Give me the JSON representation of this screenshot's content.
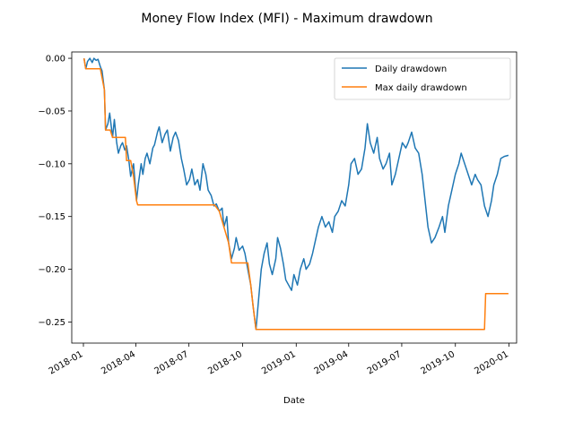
{
  "chart_data": {
    "type": "line",
    "title": "Money Flow Index (MFI) - Maximum drawdown",
    "xlabel": "Date",
    "ylabel": "",
    "xlim": [
      "2017-12-12",
      "2020-01-14"
    ],
    "ylim": [
      -0.27,
      0.006
    ],
    "grid": false,
    "legend_position": "top-right",
    "x_ticks": [
      "2018-01",
      "2018-04",
      "2018-07",
      "2018-10",
      "2019-01",
      "2019-04",
      "2019-07",
      "2019-10",
      "2020-01"
    ],
    "y_ticks": [
      0.0,
      -0.05,
      -0.1,
      -0.15,
      -0.2,
      -0.25
    ],
    "y_tick_labels": [
      "0.00",
      "−0.05",
      "−0.10",
      "−0.15",
      "−0.20",
      "−0.25"
    ],
    "series": [
      {
        "name": "Daily drawdown",
        "color": "#1f77b4",
        "points": [
          [
            "2018-01-02",
            0.0
          ],
          [
            "2018-01-05",
            -0.01
          ],
          [
            "2018-01-08",
            -0.003
          ],
          [
            "2018-01-12",
            0.0
          ],
          [
            "2018-01-16",
            -0.004
          ],
          [
            "2018-01-19",
            0.0
          ],
          [
            "2018-01-23",
            -0.002
          ],
          [
            "2018-01-26",
            -0.001
          ],
          [
            "2018-01-30",
            -0.008
          ],
          [
            "2018-02-02",
            -0.012
          ],
          [
            "2018-02-06",
            -0.03
          ],
          [
            "2018-02-08",
            -0.068
          ],
          [
            "2018-02-12",
            -0.062
          ],
          [
            "2018-02-15",
            -0.052
          ],
          [
            "2018-02-20",
            -0.075
          ],
          [
            "2018-02-23",
            -0.058
          ],
          [
            "2018-02-27",
            -0.08
          ],
          [
            "2018-03-02",
            -0.09
          ],
          [
            "2018-03-06",
            -0.083
          ],
          [
            "2018-03-09",
            -0.08
          ],
          [
            "2018-03-13",
            -0.087
          ],
          [
            "2018-03-16",
            -0.083
          ],
          [
            "2018-03-20",
            -0.097
          ],
          [
            "2018-03-23",
            -0.112
          ],
          [
            "2018-03-28",
            -0.1
          ],
          [
            "2018-04-02",
            -0.135
          ],
          [
            "2018-04-05",
            -0.12
          ],
          [
            "2018-04-10",
            -0.1
          ],
          [
            "2018-04-13",
            -0.11
          ],
          [
            "2018-04-17",
            -0.095
          ],
          [
            "2018-04-20",
            -0.09
          ],
          [
            "2018-04-25",
            -0.1
          ],
          [
            "2018-04-30",
            -0.085
          ],
          [
            "2018-05-03",
            -0.082
          ],
          [
            "2018-05-08",
            -0.07
          ],
          [
            "2018-05-11",
            -0.065
          ],
          [
            "2018-05-16",
            -0.08
          ],
          [
            "2018-05-21",
            -0.072
          ],
          [
            "2018-05-25",
            -0.068
          ],
          [
            "2018-05-30",
            -0.088
          ],
          [
            "2018-06-04",
            -0.075
          ],
          [
            "2018-06-08",
            -0.07
          ],
          [
            "2018-06-13",
            -0.078
          ],
          [
            "2018-06-18",
            -0.095
          ],
          [
            "2018-06-22",
            -0.105
          ],
          [
            "2018-06-27",
            -0.12
          ],
          [
            "2018-07-02",
            -0.115
          ],
          [
            "2018-07-06",
            -0.105
          ],
          [
            "2018-07-11",
            -0.12
          ],
          [
            "2018-07-16",
            -0.115
          ],
          [
            "2018-07-20",
            -0.125
          ],
          [
            "2018-07-25",
            -0.1
          ],
          [
            "2018-07-30",
            -0.11
          ],
          [
            "2018-08-03",
            -0.125
          ],
          [
            "2018-08-08",
            -0.13
          ],
          [
            "2018-08-13",
            -0.14
          ],
          [
            "2018-08-17",
            -0.138
          ],
          [
            "2018-08-22",
            -0.145
          ],
          [
            "2018-08-27",
            -0.142
          ],
          [
            "2018-08-30",
            -0.16
          ],
          [
            "2018-09-04",
            -0.15
          ],
          [
            "2018-09-07",
            -0.175
          ],
          [
            "2018-09-12",
            -0.19
          ],
          [
            "2018-09-17",
            -0.18
          ],
          [
            "2018-09-20",
            -0.17
          ],
          [
            "2018-09-25",
            -0.182
          ],
          [
            "2018-10-01",
            -0.178
          ],
          [
            "2018-10-05",
            -0.185
          ],
          [
            "2018-10-10",
            -0.2
          ],
          [
            "2018-10-15",
            -0.215
          ],
          [
            "2018-10-19",
            -0.235
          ],
          [
            "2018-10-24",
            -0.257
          ],
          [
            "2018-10-29",
            -0.225
          ],
          [
            "2018-11-02",
            -0.2
          ],
          [
            "2018-11-07",
            -0.185
          ],
          [
            "2018-11-12",
            -0.175
          ],
          [
            "2018-11-16",
            -0.195
          ],
          [
            "2018-11-21",
            -0.205
          ],
          [
            "2018-11-27",
            -0.19
          ],
          [
            "2018-11-30",
            -0.17
          ],
          [
            "2018-12-05",
            -0.18
          ],
          [
            "2018-12-10",
            -0.195
          ],
          [
            "2018-12-14",
            -0.21
          ],
          [
            "2018-12-19",
            -0.215
          ],
          [
            "2018-12-24",
            -0.22
          ],
          [
            "2018-12-28",
            -0.205
          ],
          [
            "2019-01-03",
            -0.215
          ],
          [
            "2019-01-08",
            -0.2
          ],
          [
            "2019-01-14",
            -0.19
          ],
          [
            "2019-01-18",
            -0.2
          ],
          [
            "2019-01-24",
            -0.195
          ],
          [
            "2019-01-29",
            -0.185
          ],
          [
            "2019-02-04",
            -0.17
          ],
          [
            "2019-02-08",
            -0.16
          ],
          [
            "2019-02-14",
            -0.15
          ],
          [
            "2019-02-20",
            -0.16
          ],
          [
            "2019-02-26",
            -0.155
          ],
          [
            "2019-03-04",
            -0.165
          ],
          [
            "2019-03-08",
            -0.15
          ],
          [
            "2019-03-14",
            -0.145
          ],
          [
            "2019-03-20",
            -0.135
          ],
          [
            "2019-03-26",
            -0.14
          ],
          [
            "2019-04-01",
            -0.12
          ],
          [
            "2019-04-05",
            -0.1
          ],
          [
            "2019-04-11",
            -0.095
          ],
          [
            "2019-04-17",
            -0.11
          ],
          [
            "2019-04-23",
            -0.105
          ],
          [
            "2019-04-29",
            -0.085
          ],
          [
            "2019-05-03",
            -0.062
          ],
          [
            "2019-05-08",
            -0.08
          ],
          [
            "2019-05-14",
            -0.09
          ],
          [
            "2019-05-20",
            -0.075
          ],
          [
            "2019-05-24",
            -0.095
          ],
          [
            "2019-05-30",
            -0.105
          ],
          [
            "2019-06-04",
            -0.1
          ],
          [
            "2019-06-10",
            -0.09
          ],
          [
            "2019-06-14",
            -0.12
          ],
          [
            "2019-06-20",
            -0.11
          ],
          [
            "2019-06-26",
            -0.095
          ],
          [
            "2019-07-02",
            -0.08
          ],
          [
            "2019-07-08",
            -0.085
          ],
          [
            "2019-07-12",
            -0.08
          ],
          [
            "2019-07-18",
            -0.07
          ],
          [
            "2019-07-24",
            -0.085
          ],
          [
            "2019-07-30",
            -0.09
          ],
          [
            "2019-08-05",
            -0.11
          ],
          [
            "2019-08-09",
            -0.13
          ],
          [
            "2019-08-15",
            -0.16
          ],
          [
            "2019-08-21",
            -0.175
          ],
          [
            "2019-08-27",
            -0.17
          ],
          [
            "2019-09-03",
            -0.16
          ],
          [
            "2019-09-09",
            -0.15
          ],
          [
            "2019-09-13",
            -0.165
          ],
          [
            "2019-09-19",
            -0.14
          ],
          [
            "2019-09-25",
            -0.125
          ],
          [
            "2019-10-01",
            -0.11
          ],
          [
            "2019-10-07",
            -0.1
          ],
          [
            "2019-10-11",
            -0.09
          ],
          [
            "2019-10-17",
            -0.1
          ],
          [
            "2019-10-23",
            -0.11
          ],
          [
            "2019-10-29",
            -0.12
          ],
          [
            "2019-11-04",
            -0.11
          ],
          [
            "2019-11-08",
            -0.115
          ],
          [
            "2019-11-14",
            -0.12
          ],
          [
            "2019-11-20",
            -0.14
          ],
          [
            "2019-11-26",
            -0.15
          ],
          [
            "2019-12-02",
            -0.135
          ],
          [
            "2019-12-06",
            -0.12
          ],
          [
            "2019-12-12",
            -0.11
          ],
          [
            "2019-12-18",
            -0.095
          ],
          [
            "2019-12-24",
            -0.093
          ],
          [
            "2019-12-31",
            -0.092
          ]
        ]
      },
      {
        "name": "Max daily drawdown",
        "color": "#ff7f0e",
        "points": [
          [
            "2018-01-02",
            0.0
          ],
          [
            "2018-01-05",
            -0.01
          ],
          [
            "2018-01-30",
            -0.01
          ],
          [
            "2018-02-06",
            -0.03
          ],
          [
            "2018-02-08",
            -0.068
          ],
          [
            "2018-02-16",
            -0.068
          ],
          [
            "2018-02-20",
            -0.075
          ],
          [
            "2018-03-14",
            -0.075
          ],
          [
            "2018-03-16",
            -0.097
          ],
          [
            "2018-03-23",
            -0.097
          ],
          [
            "2018-03-28",
            -0.112
          ],
          [
            "2018-04-02",
            -0.135
          ],
          [
            "2018-04-04",
            -0.139
          ],
          [
            "2018-08-14",
            -0.139
          ],
          [
            "2018-08-22",
            -0.145
          ],
          [
            "2018-08-30",
            -0.16
          ],
          [
            "2018-09-07",
            -0.175
          ],
          [
            "2018-09-12",
            -0.194
          ],
          [
            "2018-10-10",
            -0.194
          ],
          [
            "2018-10-15",
            -0.215
          ],
          [
            "2018-10-19",
            -0.235
          ],
          [
            "2018-10-24",
            -0.257
          ],
          [
            "2019-11-20",
            -0.257
          ],
          [
            "2019-11-22",
            -0.223
          ],
          [
            "2019-12-31",
            -0.223
          ]
        ]
      }
    ]
  }
}
